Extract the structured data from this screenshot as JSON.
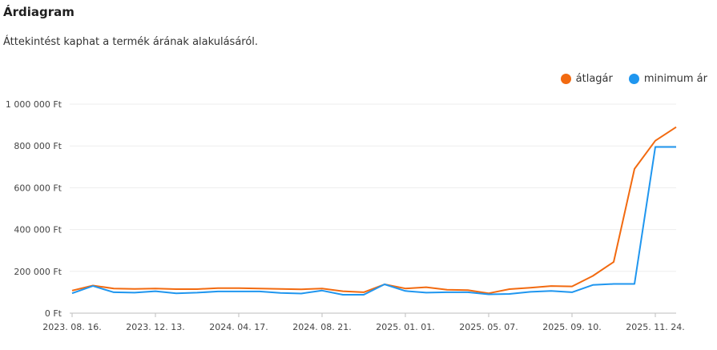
{
  "header": {
    "title": "Árdiagram",
    "subtitle": "Áttekintést kaphat a termék árának alakulásáról."
  },
  "chart_data": {
    "type": "line",
    "title": "",
    "xlabel": "",
    "ylabel": "",
    "ylim": [
      0,
      1000000
    ],
    "y_ticks": [
      0,
      200000,
      400000,
      600000,
      800000,
      1000000
    ],
    "y_tick_labels": [
      "0 Ft",
      "200 000 Ft",
      "400 000 Ft",
      "600 000 Ft",
      "800 000 Ft",
      "1 000 000 Ft"
    ],
    "x_tick_labels": [
      "2023. 08. 16.",
      "2023. 12. 13.",
      "2024. 04. 17.",
      "2024. 08. 21.",
      "2025. 01. 01.",
      "2025. 05. 07.",
      "2025. 09. 10.",
      "2025. 11. 24."
    ],
    "x_tick_indices": [
      0,
      4,
      8,
      12,
      16,
      20,
      24,
      28
    ],
    "legend_position": "top-right",
    "grid": true,
    "series": [
      {
        "name": "átlagár",
        "color": "#f26a10",
        "values": [
          108000,
          132000,
          118000,
          116000,
          118000,
          115000,
          115000,
          120000,
          120000,
          118000,
          116000,
          114000,
          118000,
          105000,
          100000,
          138000,
          118000,
          124000,
          112000,
          110000,
          95000,
          115000,
          122000,
          130000,
          128000,
          178000,
          245000,
          690000,
          825000,
          890000
        ]
      },
      {
        "name": "minimum ár",
        "color": "#1f96ef",
        "values": [
          95000,
          130000,
          100000,
          98000,
          105000,
          95000,
          98000,
          104000,
          104000,
          104000,
          97000,
          94000,
          108000,
          88000,
          88000,
          138000,
          106000,
          98000,
          100000,
          100000,
          90000,
          92000,
          102000,
          106000,
          100000,
          135000,
          140000,
          140000,
          795000,
          795000
        ]
      }
    ]
  }
}
